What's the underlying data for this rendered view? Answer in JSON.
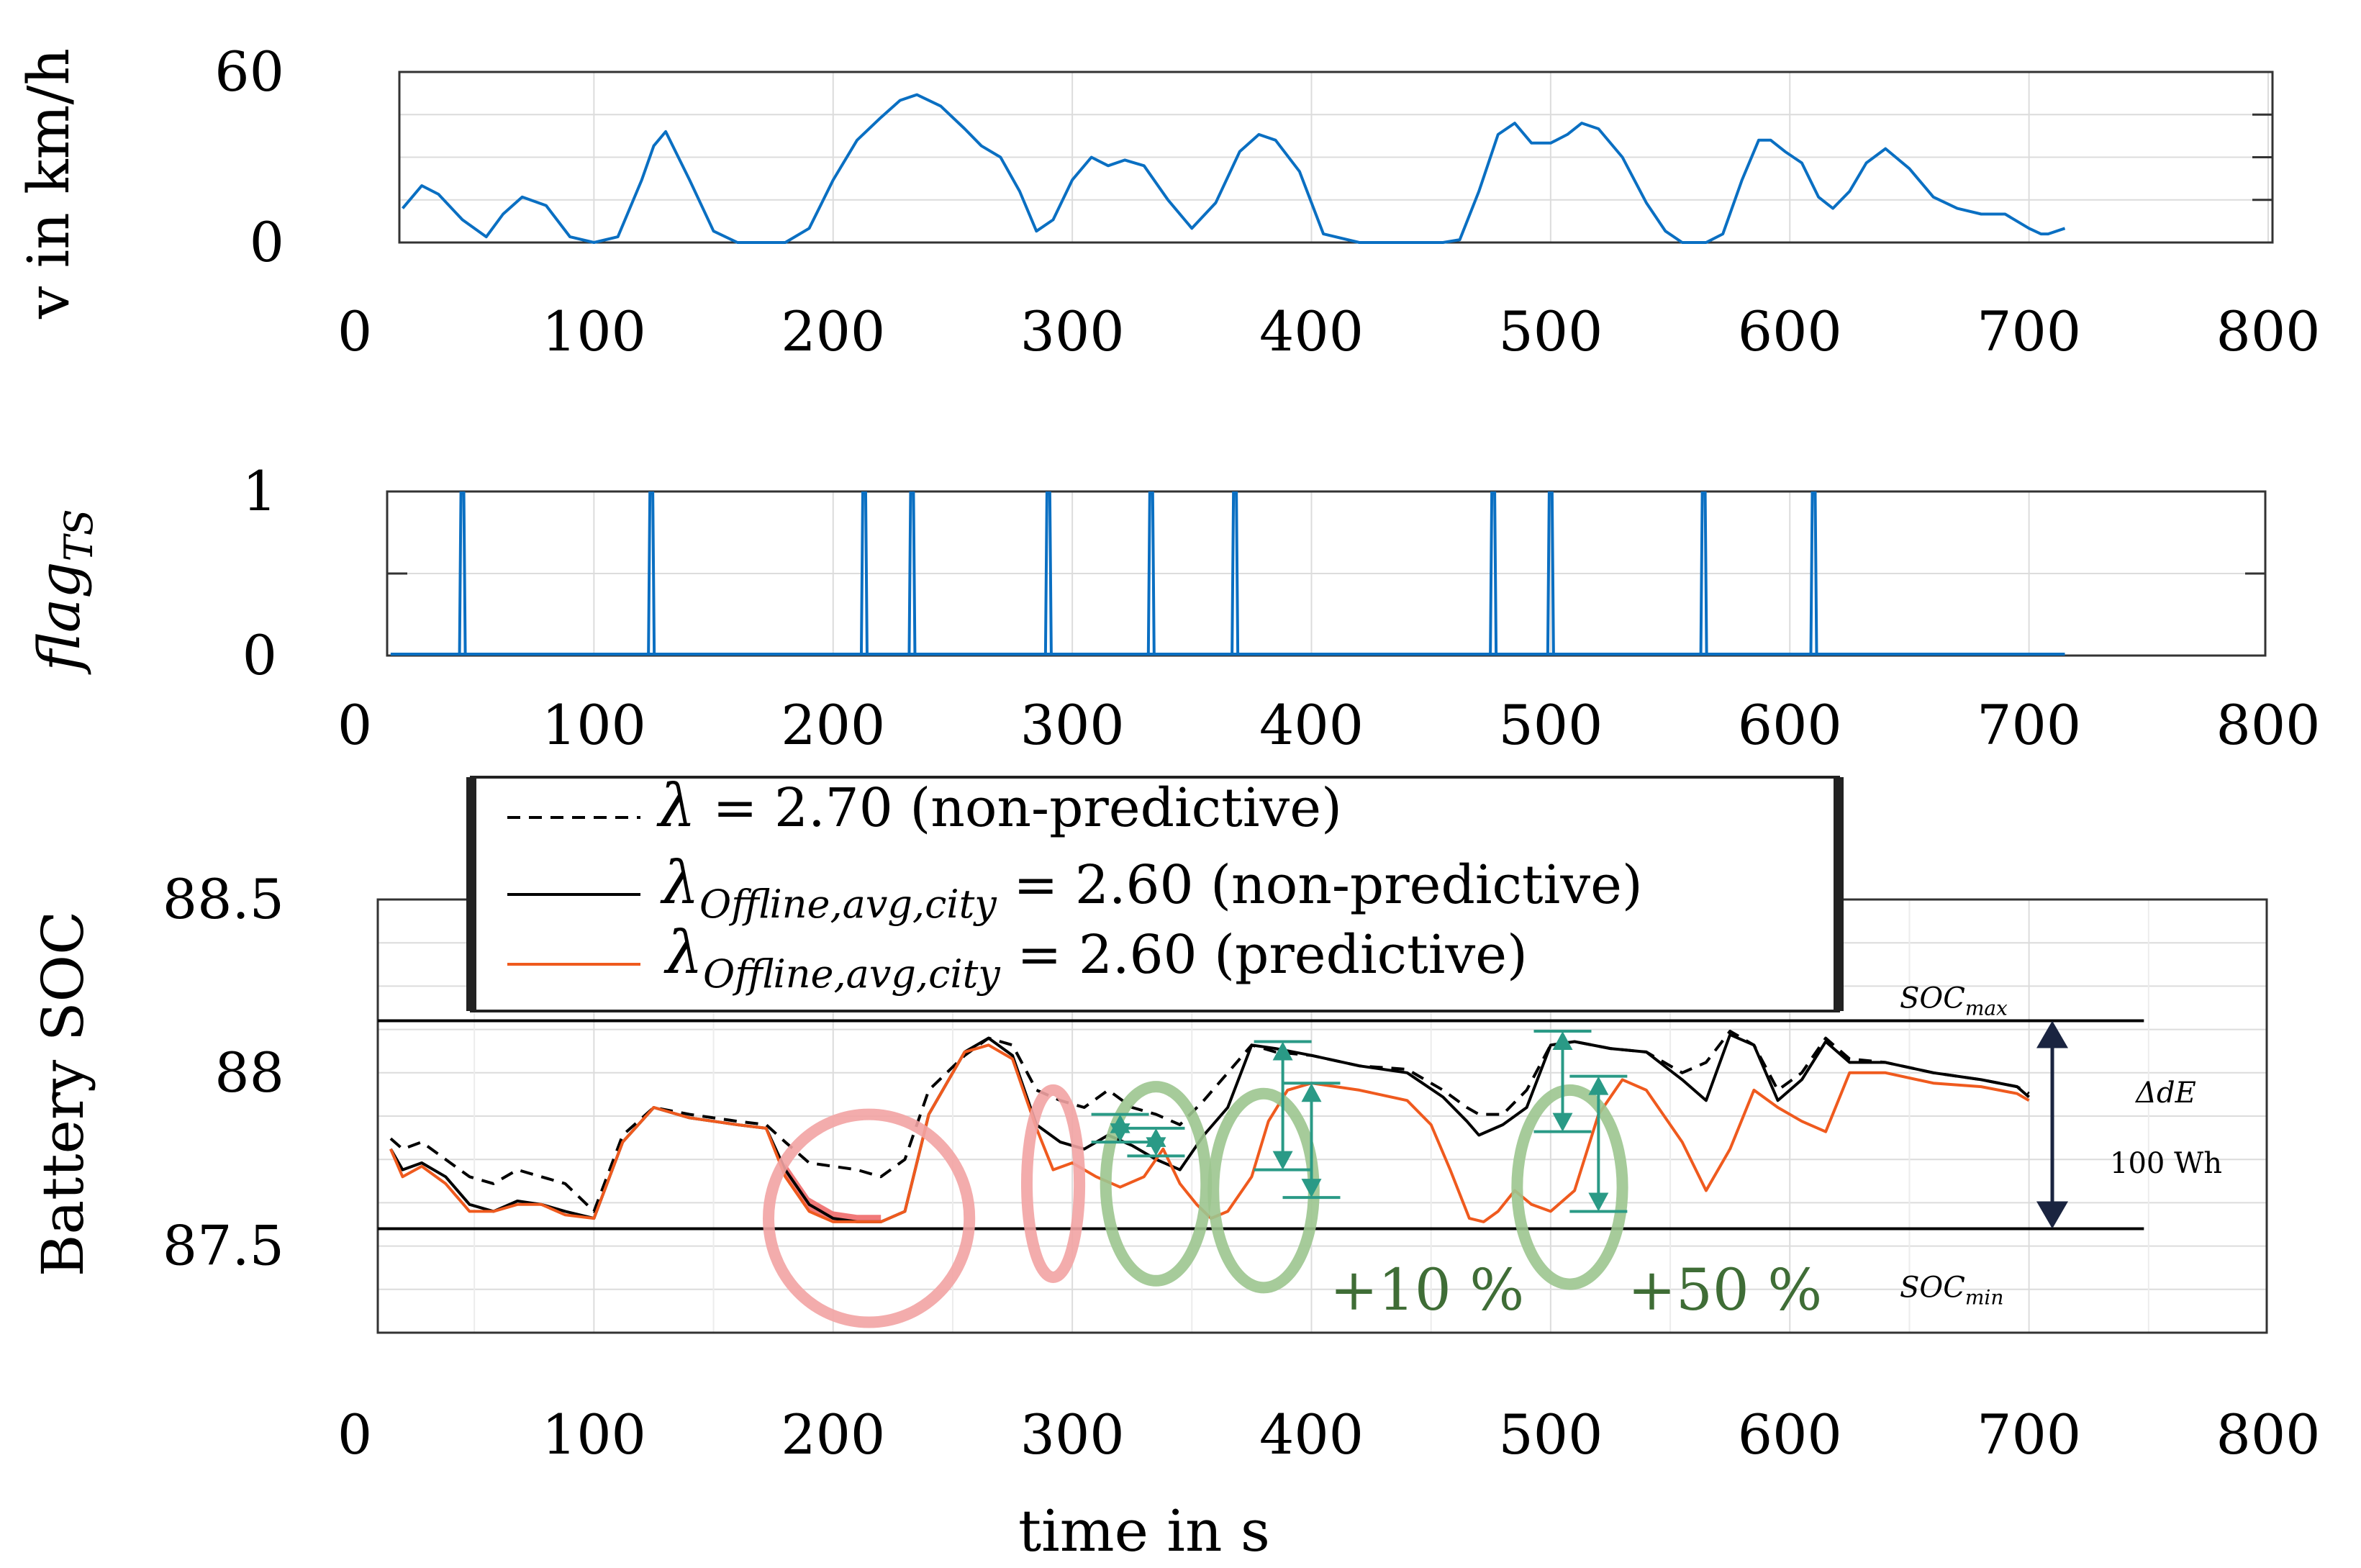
{
  "chart_data": [
    {
      "id": "speed",
      "type": "line",
      "ylabel": "v in km/h",
      "xlim": [
        0,
        800
      ],
      "ylim": [
        0,
        60
      ],
      "xticks": [
        0,
        100,
        200,
        300,
        400,
        500,
        600,
        700,
        800
      ],
      "yticks": [
        0,
        60
      ],
      "ytick_labels": [
        "0",
        "60"
      ],
      "grid": true,
      "series": [
        {
          "name": "v",
          "color": "#0a6fc2",
          "x": [
            20,
            28,
            35,
            45,
            55,
            62,
            70,
            80,
            90,
            100,
            110,
            120,
            125,
            130,
            140,
            150,
            160,
            170,
            180,
            190,
            200,
            210,
            220,
            228,
            235,
            245,
            255,
            262,
            270,
            278,
            285,
            292,
            300,
            308,
            315,
            322,
            330,
            340,
            350,
            360,
            370,
            378,
            385,
            395,
            405,
            420,
            440,
            455,
            462,
            470,
            478,
            485,
            492,
            500,
            507,
            513,
            520,
            530,
            540,
            548,
            555,
            565,
            572,
            580,
            587,
            592,
            598,
            605,
            612,
            618,
            625,
            632,
            640,
            650,
            660,
            670,
            680,
            690,
            700,
            705,
            708,
            715
          ],
          "y": [
            12,
            20,
            17,
            8,
            2,
            10,
            16,
            13,
            2,
            0,
            2,
            22,
            34,
            39,
            22,
            4,
            0,
            0,
            0,
            5,
            22,
            36,
            44,
            50,
            52,
            48,
            40,
            34,
            30,
            18,
            4,
            8,
            22,
            30,
            27,
            29,
            27,
            15,
            5,
            14,
            32,
            38,
            36,
            25,
            3,
            0,
            0,
            0,
            1,
            18,
            38,
            42,
            35,
            35,
            38,
            42,
            40,
            30,
            14,
            4,
            0,
            0,
            3,
            22,
            36,
            36,
            32,
            28,
            16,
            12,
            18,
            28,
            33,
            26,
            16,
            12,
            10,
            10,
            5,
            3,
            3,
            5
          ]
        }
      ]
    },
    {
      "id": "flag",
      "type": "line",
      "ylabel_main": "flag",
      "ylabel_sub": "TS",
      "xlim": [
        0,
        800
      ],
      "ylim": [
        0,
        1
      ],
      "xticks": [
        0,
        100,
        200,
        300,
        400,
        500,
        600,
        700,
        800
      ],
      "yticks": [
        0,
        1
      ],
      "ytick_labels": [
        "0",
        "1"
      ],
      "grid": true,
      "series": [
        {
          "name": "flag_TS",
          "color": "#0a6fc2",
          "pulse_times": [
            45,
            124,
            213,
            233,
            290,
            333,
            368,
            476,
            500,
            564,
            610
          ],
          "x_range": [
            15,
            715
          ]
        }
      ]
    },
    {
      "id": "soc",
      "type": "line",
      "ylabel": "Battery SOC",
      "xlabel": "time in s",
      "xlim": [
        0,
        800
      ],
      "ylim": [
        87.25,
        88.5
      ],
      "xticks": [
        0,
        100,
        200,
        300,
        400,
        500,
        600,
        700,
        800
      ],
      "yticks": [
        87.5,
        88,
        88.5
      ],
      "ytick_labels": [
        "87.5",
        "88",
        "88.5"
      ],
      "grid": true,
      "legend_position": "top-center",
      "legend": [
        {
          "text": "λ = 2.70 (non-predictive)",
          "symbol": "λ",
          "rest": " = 2.70 (non-predictive)",
          "style": "dashed",
          "color": "#000000"
        },
        {
          "text": "λOffline,avg,city = 2.60 (non-predictive)",
          "symbol": "λ",
          "sub": "Offline,avg,city",
          "rest": " = 2.60 (non-predictive)",
          "style": "solid",
          "color": "#000000"
        },
        {
          "text": "λOffline,avg,city = 2.60 (predictive)",
          "symbol": "λ",
          "sub": "Offline,avg,city",
          "rest": " = 2.60 (predictive)",
          "style": "solid",
          "color": "#ef5a1e"
        }
      ],
      "series": [
        {
          "name": "λ = 2.70 (non-predictive)",
          "style": "dashed",
          "color": "#000000",
          "x": [
            15,
            20,
            28,
            38,
            48,
            58,
            68,
            78,
            88,
            100,
            112,
            125,
            140,
            160,
            172,
            180,
            190,
            200,
            210,
            220,
            230,
            240,
            255,
            265,
            275,
            285,
            295,
            305,
            315,
            325,
            335,
            345,
            355,
            365,
            375,
            385,
            400,
            420,
            440,
            455,
            465,
            470,
            480,
            490,
            500,
            510,
            525,
            540,
            555,
            565,
            575,
            585,
            595,
            605,
            615,
            625,
            640,
            660,
            680,
            695,
            700
          ],
          "y": [
            87.81,
            87.78,
            87.8,
            87.75,
            87.7,
            87.68,
            87.72,
            87.7,
            87.68,
            87.6,
            87.82,
            87.9,
            87.88,
            87.86,
            87.85,
            87.8,
            87.74,
            87.73,
            87.72,
            87.7,
            87.75,
            87.95,
            88.05,
            88.1,
            88.08,
            87.95,
            87.92,
            87.9,
            87.95,
            87.9,
            87.88,
            87.85,
            87.92,
            88.0,
            88.08,
            88.06,
            88.05,
            88.02,
            88.01,
            87.95,
            87.9,
            87.88,
            87.88,
            87.95,
            88.08,
            88.09,
            88.07,
            88.06,
            88.0,
            88.03,
            88.12,
            88.08,
            87.95,
            88.0,
            88.1,
            88.04,
            88.03,
            88.0,
            87.98,
            87.96,
            87.94
          ]
        },
        {
          "name": "λOffline,avg,city = 2.60 (non-predictive)",
          "style": "solid",
          "color": "#000000",
          "x": [
            15,
            20,
            28,
            38,
            48,
            58,
            68,
            78,
            88,
            100,
            112,
            125,
            140,
            160,
            172,
            180,
            190,
            200,
            210,
            220,
            230,
            240,
            255,
            265,
            275,
            285,
            295,
            305,
            315,
            325,
            335,
            345,
            355,
            365,
            375,
            385,
            400,
            420,
            440,
            455,
            465,
            470,
            480,
            490,
            500,
            510,
            525,
            540,
            555,
            565,
            575,
            585,
            595,
            605,
            615,
            625,
            640,
            660,
            680,
            695,
            700
          ],
          "y": [
            87.78,
            87.72,
            87.74,
            87.7,
            87.62,
            87.6,
            87.63,
            87.62,
            87.6,
            87.58,
            87.8,
            87.9,
            87.87,
            87.85,
            87.84,
            87.72,
            87.62,
            87.58,
            87.57,
            87.57,
            87.6,
            87.88,
            88.06,
            88.1,
            88.05,
            87.85,
            87.8,
            87.78,
            87.82,
            87.79,
            87.75,
            87.72,
            87.82,
            87.9,
            88.08,
            88.07,
            88.05,
            88.02,
            88.0,
            87.93,
            87.86,
            87.82,
            87.85,
            87.9,
            88.08,
            88.09,
            88.07,
            88.06,
            87.98,
            87.92,
            88.11,
            88.08,
            87.92,
            87.98,
            88.09,
            88.03,
            88.03,
            88.0,
            87.98,
            87.96,
            87.93
          ]
        },
        {
          "name": "λOffline,avg,city = 2.60 (predictive)",
          "style": "solid",
          "color": "#ef5a1e",
          "x": [
            15,
            20,
            28,
            38,
            48,
            58,
            68,
            78,
            88,
            100,
            112,
            125,
            140,
            160,
            172,
            180,
            190,
            200,
            210,
            220,
            230,
            240,
            255,
            265,
            275,
            285,
            292,
            300,
            310,
            320,
            330,
            338,
            345,
            352,
            358,
            365,
            375,
            382,
            390,
            400,
            420,
            440,
            450,
            458,
            466,
            472,
            478,
            485,
            492,
            500,
            510,
            520,
            530,
            540,
            555,
            565,
            575,
            585,
            595,
            605,
            615,
            625,
            640,
            660,
            680,
            695,
            700
          ],
          "y": [
            87.78,
            87.7,
            87.73,
            87.68,
            87.6,
            87.6,
            87.62,
            87.62,
            87.59,
            87.58,
            87.8,
            87.9,
            87.87,
            87.85,
            87.84,
            87.7,
            87.6,
            87.57,
            87.57,
            87.57,
            87.6,
            87.88,
            88.06,
            88.08,
            88.04,
            87.84,
            87.72,
            87.74,
            87.7,
            87.67,
            87.7,
            87.78,
            87.68,
            87.62,
            87.58,
            87.6,
            87.7,
            87.86,
            87.95,
            87.97,
            87.95,
            87.92,
            87.85,
            87.72,
            87.58,
            87.57,
            87.6,
            87.66,
            87.62,
            87.6,
            87.66,
            87.88,
            87.98,
            87.95,
            87.8,
            87.66,
            87.78,
            87.95,
            87.9,
            87.86,
            87.83,
            88.0,
            88.0,
            87.97,
            87.96,
            87.94,
            87.92
          ]
        }
      ],
      "reference_lines": {
        "soc_max": {
          "value": 88.15,
          "label_main": "SOC",
          "label_sub": "max"
        },
        "soc_min": {
          "value": 87.55,
          "label_main": "SOC",
          "label_sub": "min"
        }
      },
      "annotations": {
        "energy_label": "ΔdE",
        "energy_value": "100 Wh",
        "gain_1": "+10 %",
        "gain_2": "+50 %"
      },
      "highlight_ellipses_red": [
        {
          "center_x": 215,
          "center_y": 87.58,
          "rx": 42,
          "ry": 0.3
        },
        {
          "center_x": 292,
          "center_y": 87.68,
          "rx": 11,
          "ry": 0.27
        }
      ],
      "highlight_ellipses_green": [
        {
          "center_x": 335,
          "center_y": 87.68,
          "rx": 21,
          "ry": 0.28
        },
        {
          "center_x": 380,
          "center_y": 87.66,
          "rx": 21,
          "ry": 0.28
        },
        {
          "center_x": 508,
          "center_y": 87.67,
          "rx": 22,
          "ry": 0.28
        }
      ],
      "green_arrows": [
        {
          "x": 320,
          "y1": 87.88,
          "y2": 87.8
        },
        {
          "x": 335,
          "y1": 87.84,
          "y2": 87.76
        },
        {
          "x": 388,
          "y1": 88.09,
          "y2": 87.72
        },
        {
          "x": 400,
          "y1": 87.97,
          "y2": 87.64
        },
        {
          "x": 505,
          "y1": 88.12,
          "y2": 87.83
        },
        {
          "x": 520,
          "y1": 87.99,
          "y2": 87.6
        }
      ],
      "fill_region": {
        "x_from": 178,
        "x_to": 228,
        "color": "#ef6a6a"
      }
    }
  ]
}
